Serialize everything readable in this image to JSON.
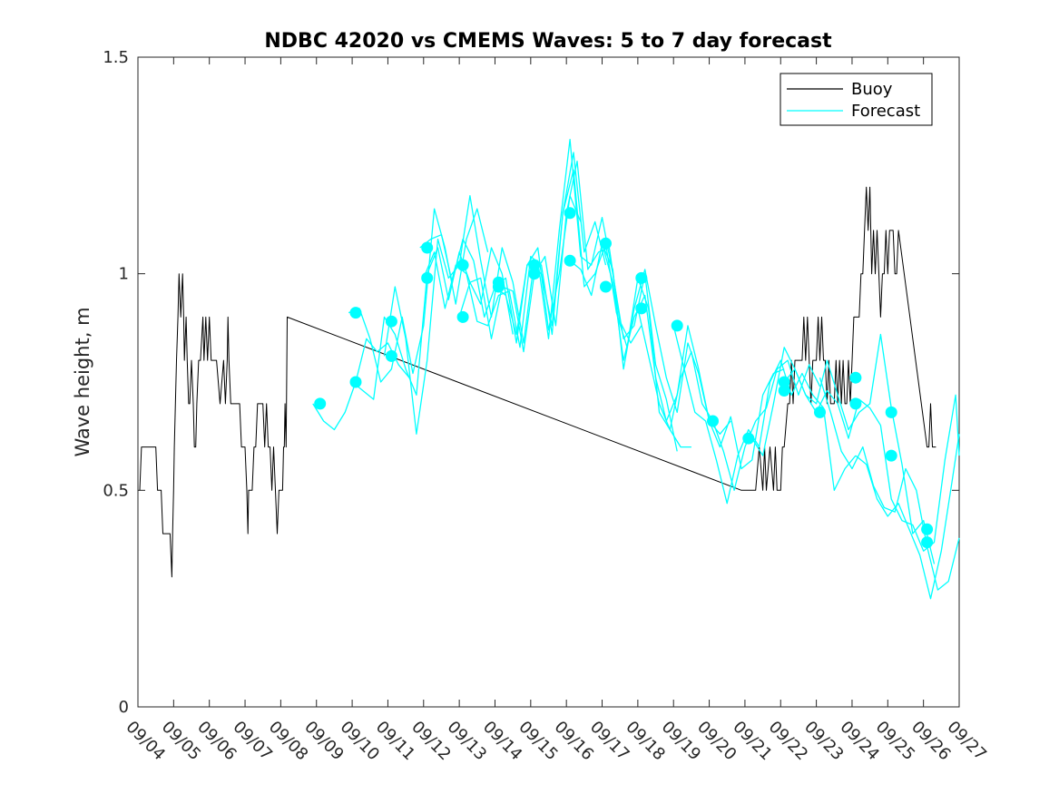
{
  "chart_data": {
    "type": "line",
    "title": "NDBC 42020 vs CMEMS Waves: 5 to 7 day forecast",
    "xlabel": "",
    "ylabel": "Wave height, m",
    "xlim": [
      0,
      23
    ],
    "ylim": [
      0,
      1.5
    ],
    "yticks": [
      0,
      0.5,
      1,
      1.5
    ],
    "ytick_labels": [
      "0",
      "0.5",
      "1",
      "1.5"
    ],
    "xtick_labels": [
      "09/04",
      "09/05",
      "09/06",
      "09/07",
      "09/08",
      "09/09",
      "09/10",
      "09/11",
      "09/12",
      "09/13",
      "09/14",
      "09/15",
      "09/16",
      "09/17",
      "09/18",
      "09/19",
      "09/20",
      "09/21",
      "09/22",
      "09/23",
      "09/24",
      "09/25",
      "09/26",
      "09/27"
    ],
    "x_unit": "days since 09/04",
    "grid": false,
    "legend": {
      "position": "top-right",
      "entries": [
        "Buoy",
        "Forecast"
      ]
    },
    "colors": {
      "buoy": "#000000",
      "forecast": "#00ffff"
    },
    "series": [
      {
        "name": "Buoy",
        "color": "#000000",
        "x": [
          0.05,
          0.1,
          0.5,
          0.55,
          0.65,
          0.7,
          0.72,
          0.8,
          0.9,
          0.95,
          0.97,
          1.0,
          1.02,
          1.05,
          1.08,
          1.12,
          1.15,
          1.2,
          1.25,
          1.28,
          1.3,
          1.35,
          1.38,
          1.42,
          1.45,
          1.5,
          1.55,
          1.58,
          1.62,
          1.65,
          1.7,
          1.75,
          1.82,
          1.85,
          1.9,
          1.95,
          2.0,
          2.05,
          2.1,
          2.15,
          2.2,
          2.3,
          2.4,
          2.45,
          2.5,
          2.52,
          2.55,
          2.6,
          2.62,
          2.65,
          2.7,
          2.75,
          2.8,
          2.85,
          2.9,
          2.95,
          3.0,
          3.05,
          3.08,
          3.1,
          3.15,
          3.2,
          3.25,
          3.3,
          3.35,
          3.4,
          3.45,
          3.5,
          3.55,
          3.6,
          3.65,
          3.7,
          3.75,
          3.8,
          3.85,
          3.9,
          3.95,
          4.0,
          4.05,
          4.08,
          4.1,
          4.12,
          4.15,
          4.18,
          16.9,
          17.3,
          17.4,
          17.5,
          17.55,
          17.6,
          17.7,
          17.8,
          17.85,
          17.9,
          18.0,
          18.05,
          18.1,
          18.2,
          18.25,
          18.3,
          18.35,
          18.4,
          18.5,
          18.6,
          18.65,
          18.7,
          18.75,
          18.8,
          18.85,
          18.9,
          18.95,
          19.0,
          19.05,
          19.1,
          19.15,
          19.2,
          19.25,
          19.3,
          19.35,
          19.4,
          19.5,
          19.55,
          19.6,
          19.65,
          19.7,
          19.75,
          19.8,
          19.85,
          19.9,
          19.95,
          20.0,
          20.05,
          20.1,
          20.15,
          20.2,
          20.25,
          20.3,
          20.35,
          20.4,
          20.45,
          20.5,
          20.55,
          20.6,
          20.65,
          20.7,
          20.75,
          20.8,
          20.85,
          20.9,
          20.95,
          21.0,
          21.05,
          21.1,
          21.15,
          21.2,
          21.25,
          21.3,
          22.1,
          22.15,
          22.2,
          22.25,
          22.3,
          22.35
        ],
        "values": [
          0.5,
          0.6,
          0.6,
          0.5,
          0.5,
          0.4,
          0.4,
          0.4,
          0.4,
          0.3,
          0.4,
          0.5,
          0.6,
          0.7,
          0.8,
          0.9,
          1.0,
          0.9,
          1.0,
          0.9,
          0.8,
          0.9,
          0.8,
          0.7,
          0.7,
          0.8,
          0.7,
          0.6,
          0.6,
          0.7,
          0.8,
          0.8,
          0.9,
          0.8,
          0.9,
          0.8,
          0.9,
          0.8,
          0.8,
          0.8,
          0.8,
          0.7,
          0.8,
          0.7,
          0.8,
          0.9,
          0.8,
          0.7,
          0.7,
          0.7,
          0.7,
          0.7,
          0.7,
          0.7,
          0.6,
          0.6,
          0.6,
          0.5,
          0.4,
          0.5,
          0.5,
          0.5,
          0.6,
          0.6,
          0.7,
          0.7,
          0.7,
          0.7,
          0.6,
          0.7,
          0.6,
          0.6,
          0.5,
          0.6,
          0.5,
          0.4,
          0.5,
          0.5,
          0.5,
          0.6,
          0.6,
          0.7,
          0.6,
          0.9,
          0.5,
          0.5,
          0.6,
          0.5,
          0.6,
          0.5,
          0.6,
          0.5,
          0.6,
          0.5,
          0.5,
          0.6,
          0.6,
          0.7,
          0.7,
          0.8,
          0.7,
          0.8,
          0.8,
          0.8,
          0.9,
          0.8,
          0.9,
          0.8,
          0.7,
          0.8,
          0.8,
          0.8,
          0.9,
          0.8,
          0.9,
          0.8,
          0.8,
          0.7,
          0.8,
          0.7,
          0.7,
          0.8,
          0.7,
          0.8,
          0.7,
          0.8,
          0.7,
          0.7,
          0.8,
          0.7,
          0.8,
          0.9,
          0.9,
          0.9,
          0.9,
          1.0,
          1.0,
          1.1,
          1.2,
          1.1,
          1.2,
          1.0,
          1.1,
          1.0,
          1.1,
          1.0,
          0.9,
          1.0,
          1.0,
          1.1,
          1.0,
          1.1,
          1.1,
          1.1,
          1.0,
          1.0,
          1.1,
          0.6,
          0.6,
          0.7,
          0.6,
          0.6,
          0.6
        ]
      },
      {
        "name": "Forecast",
        "color": "#00ffff",
        "x": [
          4.9,
          5.2,
          5.5,
          5.8,
          6.1,
          6.4,
          6.7,
          7.0,
          7.3,
          7.6
        ],
        "values": [
          0.7,
          0.66,
          0.64,
          0.68,
          0.75,
          0.85,
          0.82,
          0.84,
          0.79,
          0.76
        ]
      },
      {
        "name": "Forecast",
        "color": "#00ffff",
        "x": [
          5.9,
          6.2,
          6.5,
          6.8,
          7.1,
          7.4,
          7.7,
          8.0,
          8.3,
          8.6,
          8.9,
          9.2,
          9.5,
          9.8
        ],
        "values": [
          0.91,
          0.92,
          0.85,
          0.75,
          0.78,
          0.9,
          0.77,
          0.88,
          1.15,
          1.06,
          0.93,
          1.08,
          1.15,
          1.05
        ]
      },
      {
        "name": "Forecast",
        "color": "#00ffff",
        "x": [
          6.9,
          7.2,
          7.5,
          7.8,
          8.1,
          8.4,
          8.7,
          9.0,
          9.3,
          9.6,
          9.9,
          10.2,
          10.5,
          10.8,
          11.1
        ],
        "values": [
          0.81,
          0.97,
          0.85,
          0.63,
          0.8,
          1.08,
          0.99,
          1.02,
          1.18,
          1.03,
          0.9,
          1.06,
          0.98,
          0.84,
          1.03
        ]
      },
      {
        "name": "Forecast",
        "color": "#00ffff",
        "x": [
          6.0,
          6.3,
          6.6,
          6.9,
          7.2,
          7.5,
          7.8,
          8.1,
          8.4,
          8.7,
          9.0,
          9.3,
          9.6,
          9.9,
          10.2,
          10.5
        ],
        "values": [
          0.75,
          0.73,
          0.71,
          0.9,
          0.86,
          0.78,
          0.72,
          1.0,
          1.06,
          0.94,
          1.05,
          0.98,
          0.93,
          1.06,
          1.0,
          0.86
        ]
      },
      {
        "name": "Forecast",
        "color": "#00ffff",
        "x": [
          7.9,
          8.2,
          8.5,
          8.8,
          9.1,
          9.4,
          9.7,
          10.0,
          10.3,
          10.6,
          10.9,
          11.2,
          11.5,
          11.8,
          12.1,
          12.4
        ],
        "values": [
          1.06,
          1.08,
          1.09,
          0.98,
          1.08,
          1.03,
          0.9,
          0.97,
          0.99,
          0.84,
          1.02,
          1.06,
          0.87,
          1.0,
          1.18,
          1.12
        ]
      },
      {
        "name": "Forecast",
        "color": "#00ffff",
        "x": [
          8.0,
          8.3,
          8.6,
          8.9,
          9.2,
          9.5,
          9.8,
          10.1,
          10.4,
          10.7,
          11.0,
          11.3,
          11.6,
          11.9,
          12.2,
          12.5,
          12.8,
          13.1
        ],
        "values": [
          0.99,
          1.05,
          0.92,
          1.02,
          1.0,
          0.89,
          0.88,
          0.95,
          0.96,
          0.83,
          1.04,
          1.02,
          0.86,
          1.14,
          1.28,
          1.05,
          1.12,
          1.02
        ]
      },
      {
        "name": "Forecast",
        "color": "#00ffff",
        "x": [
          9.0,
          9.3,
          9.6,
          9.9,
          10.2,
          10.5,
          10.8,
          11.1,
          11.4,
          11.7,
          12.0,
          12.3,
          12.6,
          12.9,
          13.2,
          13.5,
          13.8,
          14.1
        ],
        "values": [
          0.9,
          0.98,
          0.99,
          0.85,
          0.97,
          0.96,
          0.82,
          1.0,
          1.04,
          0.88,
          1.14,
          1.26,
          1.01,
          1.05,
          1.06,
          0.89,
          0.84,
          0.88
        ]
      },
      {
        "name": "Forecast",
        "color": "#00ffff",
        "x": [
          10.0,
          10.3,
          10.6,
          10.9,
          11.2,
          11.5,
          11.8,
          12.1,
          12.4,
          12.7,
          13.0,
          13.3,
          13.6,
          13.9,
          14.2,
          14.5,
          14.8,
          15.1
        ],
        "values": [
          0.97,
          0.95,
          0.86,
          1.02,
          1.03,
          0.85,
          1.1,
          1.31,
          1.04,
          1.02,
          1.13,
          1.0,
          0.85,
          0.88,
          1.0,
          0.79,
          0.71,
          0.59
        ]
      },
      {
        "name": "Forecast",
        "color": "#00ffff",
        "x": [
          11.0,
          11.3,
          11.6,
          11.9,
          12.2,
          12.5,
          12.8,
          13.1,
          13.4,
          13.7,
          14.0,
          14.3,
          14.6,
          14.9,
          15.2,
          15.5
        ],
        "values": [
          1.02,
          1.0,
          0.88,
          1.14,
          1.24,
          0.97,
          1.0,
          1.07,
          0.91,
          0.83,
          0.99,
          0.92,
          0.68,
          0.64,
          0.6,
          0.6
        ]
      },
      {
        "name": "Forecast",
        "color": "#00ffff",
        "x": [
          12.1,
          12.4,
          12.7,
          13.0,
          13.3,
          13.6,
          13.9,
          14.2,
          14.5,
          14.8,
          15.1,
          15.4,
          15.7,
          16.0,
          16.3,
          16.6
        ],
        "values": [
          1.03,
          1.01,
          0.95,
          1.07,
          0.98,
          0.8,
          0.9,
          0.95,
          0.76,
          0.66,
          0.72,
          0.88,
          0.78,
          0.66,
          0.63,
          0.66
        ]
      },
      {
        "name": "Forecast",
        "color": "#00ffff",
        "x": [
          13.0,
          13.3,
          13.6,
          13.9,
          14.2,
          14.5,
          14.8,
          15.1,
          15.4,
          15.7,
          16.0,
          16.3,
          16.6,
          16.9,
          17.2,
          17.5,
          17.8,
          18.1
        ],
        "values": [
          1.07,
          1.01,
          0.78,
          0.92,
          1.01,
          0.88,
          0.76,
          0.68,
          0.84,
          0.77,
          0.66,
          0.6,
          0.67,
          0.55,
          0.57,
          0.72,
          0.77,
          0.78
        ]
      },
      {
        "name": "Forecast",
        "color": "#00ffff",
        "x": [
          14.0,
          14.3,
          14.6,
          14.9,
          15.2,
          15.5,
          15.8,
          16.1,
          16.4,
          16.7,
          17.0,
          17.3,
          17.6,
          17.9,
          18.2,
          18.5,
          18.8,
          19.1
        ],
        "values": [
          0.92,
          0.81,
          0.7,
          0.64,
          0.76,
          0.82,
          0.7,
          0.66,
          0.59,
          0.5,
          0.6,
          0.66,
          0.69,
          0.78,
          0.8,
          0.72,
          0.79,
          0.74
        ]
      },
      {
        "name": "Forecast",
        "color": "#00ffff",
        "x": [
          15.0,
          15.3,
          15.6,
          15.9,
          16.2,
          16.5,
          16.8,
          17.1,
          17.4,
          17.7,
          18.0,
          18.3,
          18.6,
          18.9,
          19.2,
          19.5,
          19.8,
          20.1
        ],
        "values": [
          0.88,
          0.78,
          0.68,
          0.66,
          0.57,
          0.47,
          0.58,
          0.64,
          0.6,
          0.75,
          0.8,
          0.72,
          0.77,
          0.72,
          0.69,
          0.5,
          0.55,
          0.58
        ]
      },
      {
        "name": "Forecast",
        "color": "#00ffff",
        "x": [
          17.2,
          17.5,
          17.8,
          18.1,
          18.4,
          18.7,
          19.0,
          19.3,
          19.6,
          19.9,
          20.2,
          20.5,
          20.8,
          21.1,
          21.4,
          21.7,
          22.0,
          22.3
        ],
        "values": [
          0.62,
          0.58,
          0.7,
          0.83,
          0.78,
          0.72,
          0.7,
          0.8,
          0.72,
          0.64,
          0.68,
          0.7,
          0.86,
          0.69,
          0.56,
          0.4,
          0.43,
          0.33
        ]
      },
      {
        "name": "Forecast",
        "color": "#00ffff",
        "x": [
          18.1,
          18.4,
          18.7,
          19.0,
          19.3,
          19.6,
          19.9,
          20.2,
          20.5,
          20.8,
          21.1,
          21.4,
          21.7,
          22.0,
          22.3,
          22.6,
          22.9,
          23.0
        ],
        "values": [
          0.75,
          0.78,
          0.72,
          0.68,
          0.73,
          0.7,
          0.62,
          0.71,
          0.69,
          0.65,
          0.48,
          0.43,
          0.42,
          0.36,
          0.38,
          0.57,
          0.72,
          0.58
        ]
      },
      {
        "name": "Forecast",
        "color": "#00ffff",
        "x": [
          19.1,
          19.4,
          19.7,
          20.0,
          20.3,
          20.6,
          20.9,
          21.2,
          21.5,
          21.8,
          22.1,
          22.4,
          22.7,
          23.0
        ],
        "values": [
          0.76,
          0.68,
          0.59,
          0.55,
          0.6,
          0.51,
          0.46,
          0.45,
          0.55,
          0.5,
          0.37,
          0.27,
          0.29,
          0.39
        ]
      },
      {
        "name": "Forecast",
        "color": "#00ffff",
        "x": [
          20.1,
          20.4,
          20.7,
          21.0,
          21.3,
          21.6,
          21.9,
          22.2,
          22.5,
          22.8,
          23.0
        ],
        "values": [
          0.58,
          0.56,
          0.48,
          0.44,
          0.47,
          0.41,
          0.35,
          0.25,
          0.36,
          0.52,
          0.63
        ]
      }
    ],
    "markers": {
      "name": "Forecast start",
      "color": "#00ffff",
      "x": [
        5.1,
        6.1,
        6.1,
        7.1,
        7.1,
        8.1,
        8.1,
        9.1,
        9.1,
        10.1,
        10.1,
        11.1,
        11.1,
        12.1,
        12.1,
        13.1,
        13.1,
        14.1,
        14.1,
        15.1,
        16.1,
        17.1,
        18.1,
        18.1,
        19.1,
        20.1,
        20.1,
        21.1,
        21.1,
        22.1,
        22.1
      ],
      "values": [
        0.7,
        0.91,
        0.75,
        0.89,
        0.81,
        1.06,
        0.99,
        1.02,
        0.9,
        0.98,
        0.97,
        1.02,
        1.0,
        1.14,
        1.03,
        1.07,
        0.97,
        0.99,
        0.92,
        0.88,
        0.66,
        0.62,
        0.75,
        0.73,
        0.68,
        0.76,
        0.7,
        0.68,
        0.58,
        0.41,
        0.38
      ]
    }
  }
}
